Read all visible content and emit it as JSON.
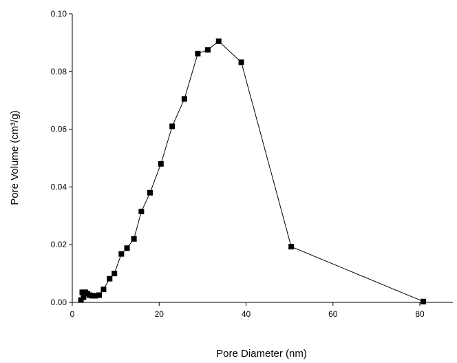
{
  "chart_data": {
    "type": "line",
    "title": "",
    "xlabel": "Pore Diameter (nm)",
    "ylabel": "Pore Volume (cm³/g)",
    "xlim": [
      0,
      88
    ],
    "ylim": [
      0,
      0.1
    ],
    "xticks": [
      0,
      20,
      40,
      60,
      80
    ],
    "xtick_labels": [
      "0",
      "20",
      "40",
      "60",
      "80"
    ],
    "yticks": [
      0,
      0.02,
      0.04,
      0.06,
      0.08,
      0.1
    ],
    "ytick_labels": [
      "0.00",
      "0.02",
      "0.04",
      "0.06",
      "0.08",
      "0.10"
    ],
    "grid": false,
    "legend": "none",
    "marker": "square",
    "color": "#000000",
    "series": [
      {
        "x": [
          2.0,
          2.3,
          2.6,
          3.0,
          3.5,
          4.0,
          4.6,
          5.3,
          6.2,
          7.2,
          8.6,
          9.7,
          11.3,
          12.6,
          14.2,
          15.9,
          17.9,
          20.4,
          23.0,
          25.8,
          28.9,
          31.2,
          33.7,
          38.9,
          50.4,
          80.8
        ],
        "y": [
          0.0008,
          0.0035,
          0.0018,
          0.0035,
          0.003,
          0.0025,
          0.0023,
          0.0023,
          0.0025,
          0.0045,
          0.0082,
          0.01,
          0.0168,
          0.0188,
          0.022,
          0.0315,
          0.038,
          0.048,
          0.061,
          0.0705,
          0.0862,
          0.0875,
          0.0905,
          0.0832,
          0.0193,
          0.0003
        ]
      }
    ]
  }
}
